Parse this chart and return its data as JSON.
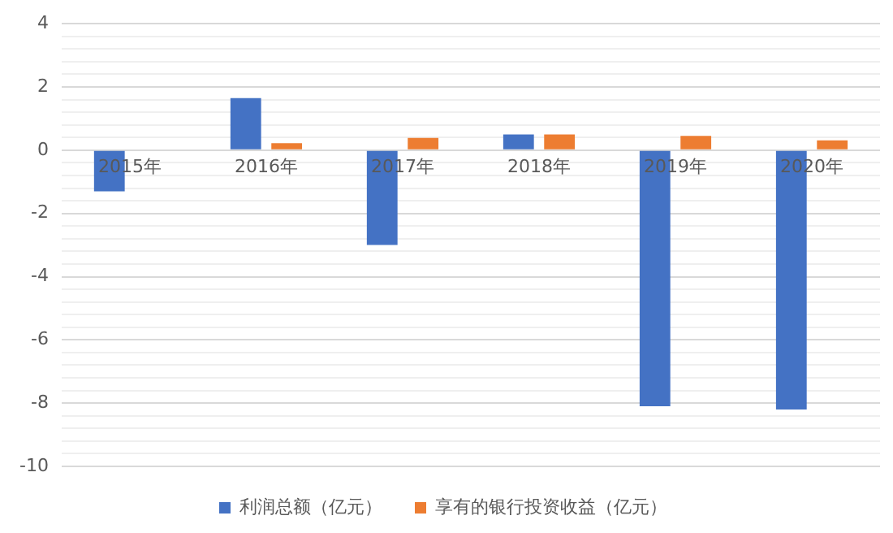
{
  "chart_data": {
    "type": "bar",
    "categories": [
      "2015年",
      "2016年",
      "2017年",
      "2018年",
      "2019年",
      "2020年"
    ],
    "series": [
      {
        "name": "利润总额（亿元）",
        "color": "#4472c4",
        "values": [
          -1.3,
          1.65,
          -3.0,
          0.5,
          -8.1,
          -8.2
        ]
      },
      {
        "name": "享有的银行投资收益（亿元）",
        "color": "#ed7d31",
        "values": [
          null,
          0.22,
          0.39,
          0.5,
          0.45,
          0.31
        ]
      }
    ],
    "ylim": [
      -10,
      4
    ],
    "yticks": [
      -10,
      {
        "value": -9.6,
        "label": null
      },
      {
        "value": -9.2,
        "label": null
      },
      {
        "value": -8.8,
        "label": null
      },
      {
        "value": -8.4,
        "label": null
      },
      -8,
      {
        "value": -7.6,
        "label": null
      },
      {
        "value": -7.2,
        "label": null
      },
      {
        "value": -6.8,
        "label": null
      },
      {
        "value": -6.4,
        "label": null
      },
      -6,
      {
        "value": -5.6,
        "label": null
      },
      {
        "value": -5.2,
        "label": null
      },
      {
        "value": -4.8,
        "label": null
      },
      {
        "value": -4.4,
        "label": null
      },
      -4,
      {
        "value": -3.6,
        "label": null
      },
      {
        "value": -3.2,
        "label": null
      },
      {
        "value": -2.8,
        "label": null
      },
      {
        "value": -2.4,
        "label": null
      },
      -2,
      {
        "value": -1.6,
        "label": null
      },
      {
        "value": -1.2,
        "label": null
      },
      {
        "value": -0.8,
        "label": null
      },
      {
        "value": -0.4,
        "label": null
      },
      0,
      {
        "value": 0.4,
        "label": null
      },
      {
        "value": 0.8,
        "label": null
      },
      {
        "value": 1.2,
        "label": null
      },
      {
        "value": 1.6,
        "label": null
      },
      2,
      {
        "value": 2.4,
        "label": null
      },
      {
        "value": 2.8,
        "label": null
      },
      {
        "value": 3.2,
        "label": null
      },
      {
        "value": 3.6,
        "label": null
      },
      4
    ],
    "grid": "y",
    "legend": "bottom"
  }
}
